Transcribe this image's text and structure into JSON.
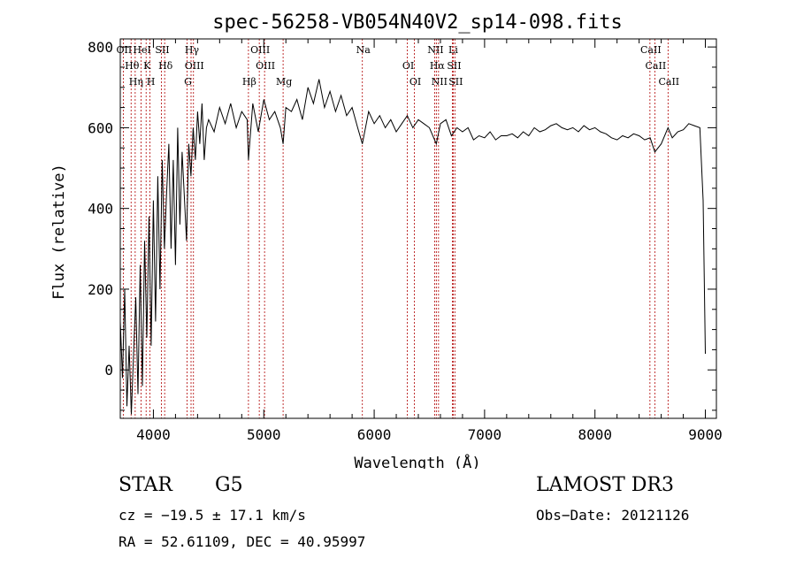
{
  "chart_data": {
    "type": "line",
    "title": "spec-56258-VB054N40V2_sp14-098.fits",
    "xlabel": "Wavelength (Å)",
    "ylabel": "Flux (relative)",
    "xlim": [
      3700,
      9100
    ],
    "ylim": [
      -120,
      820
    ],
    "xticks": [
      4000,
      5000,
      6000,
      7000,
      8000,
      9000
    ],
    "yticks": [
      0,
      200,
      400,
      600,
      800
    ],
    "series": [
      {
        "name": "flux",
        "x": [
          3700,
          3720,
          3740,
          3760,
          3780,
          3800,
          3820,
          3840,
          3860,
          3880,
          3900,
          3920,
          3940,
          3960,
          3980,
          4000,
          4020,
          4040,
          4060,
          4080,
          4100,
          4120,
          4140,
          4160,
          4180,
          4200,
          4220,
          4240,
          4260,
          4280,
          4300,
          4320,
          4340,
          4360,
          4380,
          4400,
          4420,
          4440,
          4460,
          4480,
          4500,
          4550,
          4600,
          4650,
          4700,
          4750,
          4800,
          4850,
          4861,
          4900,
          4950,
          5000,
          5050,
          5100,
          5150,
          5175,
          5200,
          5250,
          5300,
          5350,
          5400,
          5450,
          5500,
          5550,
          5600,
          5650,
          5700,
          5750,
          5800,
          5850,
          5893,
          5950,
          6000,
          6050,
          6100,
          6150,
          6200,
          6250,
          6300,
          6350,
          6400,
          6450,
          6500,
          6563,
          6600,
          6650,
          6700,
          6750,
          6800,
          6850,
          6900,
          6950,
          7000,
          7050,
          7100,
          7150,
          7200,
          7250,
          7300,
          7350,
          7400,
          7450,
          7500,
          7550,
          7600,
          7650,
          7700,
          7750,
          7800,
          7850,
          7900,
          7950,
          8000,
          8050,
          8100,
          8150,
          8200,
          8250,
          8300,
          8350,
          8400,
          8450,
          8500,
          8542,
          8600,
          8662,
          8700,
          8750,
          8800,
          8850,
          8900,
          8950,
          8980,
          9000
        ],
        "values": [
          120,
          -20,
          200,
          -90,
          60,
          -110,
          40,
          180,
          -60,
          260,
          -40,
          320,
          80,
          380,
          60,
          420,
          120,
          480,
          200,
          520,
          300,
          440,
          560,
          300,
          520,
          260,
          600,
          360,
          540,
          430,
          320,
          560,
          480,
          600,
          520,
          640,
          560,
          660,
          520,
          600,
          620,
          590,
          650,
          610,
          660,
          600,
          640,
          620,
          520,
          660,
          590,
          670,
          620,
          640,
          600,
          560,
          650,
          640,
          670,
          620,
          700,
          660,
          720,
          650,
          690,
          640,
          680,
          630,
          650,
          600,
          560,
          640,
          610,
          630,
          600,
          620,
          590,
          610,
          630,
          600,
          620,
          610,
          600,
          560,
          610,
          620,
          580,
          600,
          590,
          600,
          570,
          580,
          575,
          590,
          570,
          580,
          580,
          585,
          575,
          590,
          580,
          600,
          590,
          595,
          605,
          610,
          600,
          595,
          600,
          590,
          605,
          595,
          600,
          590,
          585,
          575,
          570,
          580,
          575,
          585,
          580,
          570,
          575,
          540,
          560,
          600,
          575,
          590,
          595,
          610,
          605,
          600,
          420,
          40
        ]
      }
    ],
    "lines": [
      {
        "name": "OII",
        "wave": 3727
      },
      {
        "name": "Hθ",
        "wave": 3798
      },
      {
        "name": "Hη",
        "wave": 3835
      },
      {
        "name": "HeI",
        "wave": 3889
      },
      {
        "name": "K",
        "wave": 3934
      },
      {
        "name": "H",
        "wave": 3969
      },
      {
        "name": "SII",
        "wave": 4072
      },
      {
        "name": "Hδ",
        "wave": 4102
      },
      {
        "name": "G",
        "wave": 4305
      },
      {
        "name": "Hγ",
        "wave": 4341
      },
      {
        "name": "OIII",
        "wave": 4363
      },
      {
        "name": "Hβ",
        "wave": 4861
      },
      {
        "name": "OIII",
        "wave": 4959
      },
      {
        "name": "OIII",
        "wave": 5007
      },
      {
        "name": "Mg",
        "wave": 5175
      },
      {
        "name": "Na",
        "wave": 5893
      },
      {
        "name": "OI",
        "wave": 6300
      },
      {
        "name": "OI",
        "wave": 6364
      },
      {
        "name": "NII",
        "wave": 6548
      },
      {
        "name": "Hα",
        "wave": 6563
      },
      {
        "name": "NII",
        "wave": 6583
      },
      {
        "name": "Li",
        "wave": 6708
      },
      {
        "name": "SII",
        "wave": 6716
      },
      {
        "name": "SII",
        "wave": 6731
      },
      {
        "name": "CaII",
        "wave": 8498
      },
      {
        "name": "CaII",
        "wave": 8542
      },
      {
        "name": "CaII",
        "wave": 8662
      }
    ]
  },
  "info": {
    "object_class": "STAR",
    "subclass": "G5",
    "survey": "LAMOST DR3",
    "cz": "cz = −19.5 ± 17.1 km/s",
    "obs_date": "Obs−Date: 20121126",
    "radec": "RA =  52.61109, DEC =  40.95997"
  },
  "colors": {
    "spectrum": "#000000",
    "line_markers": "#b00000"
  }
}
